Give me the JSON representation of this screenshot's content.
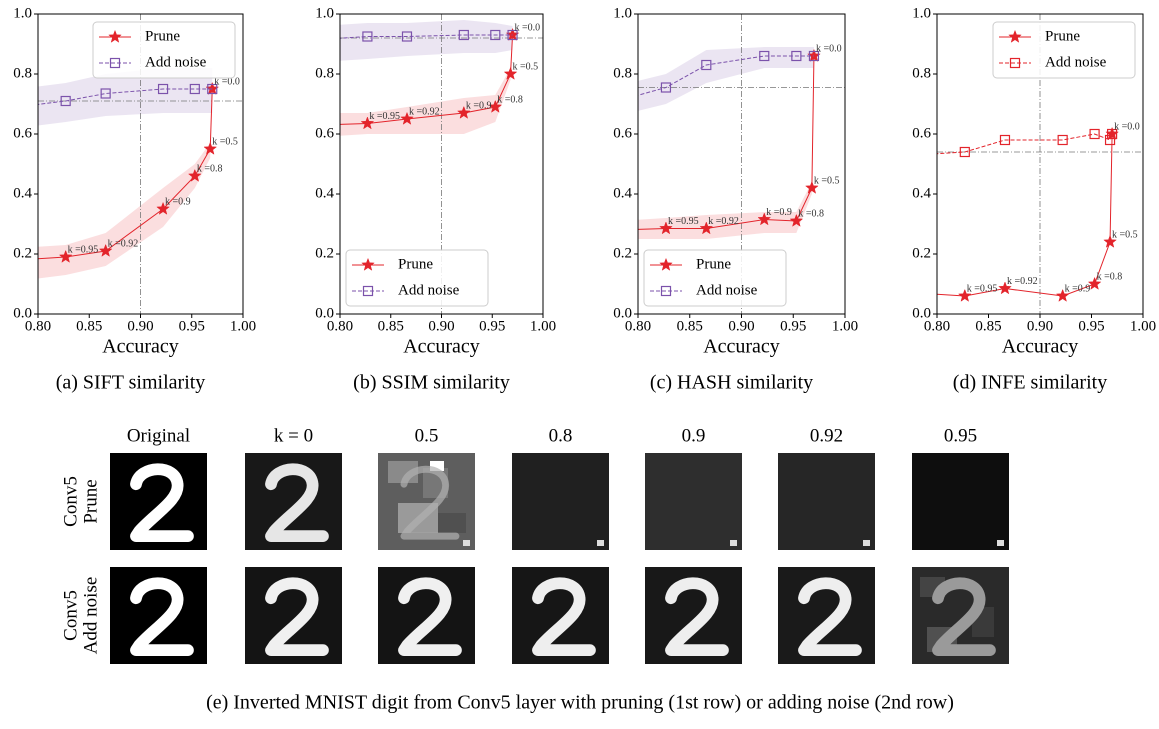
{
  "chart_data": [
    {
      "type": "line",
      "caption": "(a) SIFT similarity",
      "xlabel": "Accuracy",
      "xlim": [
        0.8,
        1.0
      ],
      "ylim": [
        0,
        1
      ],
      "xticks": [
        {
          "value": 0.8,
          "label": "0.80"
        },
        {
          "value": 0.85,
          "label": "0.85"
        },
        {
          "value": 0.9,
          "label": "0.90"
        },
        {
          "value": 0.95,
          "label": "0.95"
        },
        {
          "value": 1.0,
          "label": "1.00"
        }
      ],
      "yticks": [
        {
          "value": 0,
          "label": "0.0"
        },
        0.2,
        0.4,
        0.6,
        0.8,
        {
          "value": 1,
          "label": "1.0"
        }
      ],
      "legend": "upper right",
      "hline": 0.71,
      "vline": 0.9,
      "series": [
        {
          "name": "Prune",
          "color": "#e3242b",
          "marker": "star",
          "linestyle": "solid",
          "x": [
            0.78,
            0.827,
            0.866,
            0.922,
            0.953,
            0.968,
            0.97
          ],
          "values": [
            0.18,
            0.19,
            0.21,
            0.35,
            0.46,
            0.55,
            0.75
          ],
          "lower": [
            0.11,
            0.13,
            0.16,
            0.29,
            0.42,
            0.52,
            0.73
          ],
          "upper": [
            0.22,
            0.23,
            0.27,
            0.42,
            0.5,
            0.57,
            0.77
          ],
          "point_labels": [
            null,
            "k =0.95",
            "k =0.92",
            "k =0.9",
            "k =0.8",
            "k =0.5",
            "k =0.0"
          ]
        },
        {
          "name": "Add noise",
          "color": "#7b52ab",
          "marker": "square",
          "linestyle": "dashed",
          "x": [
            0.78,
            0.827,
            0.866,
            0.922,
            0.953,
            0.97
          ],
          "values": [
            0.69,
            0.71,
            0.735,
            0.75,
            0.75,
            0.75
          ],
          "lower": [
            0.62,
            0.64,
            0.66,
            0.67,
            0.67,
            0.67
          ],
          "upper": [
            0.75,
            0.77,
            0.8,
            0.82,
            0.82,
            0.82
          ]
        }
      ]
    },
    {
      "type": "line",
      "caption": "(b) SSIM similarity",
      "xlabel": "Accuracy",
      "xlim": [
        0.8,
        1.0
      ],
      "ylim": [
        0,
        1
      ],
      "xticks": [
        {
          "value": 0.8,
          "label": "0.80"
        },
        {
          "value": 0.85,
          "label": "0.85"
        },
        {
          "value": 0.9,
          "label": "0.90"
        },
        {
          "value": 0.95,
          "label": "0.95"
        },
        {
          "value": 1.0,
          "label": "1.00"
        }
      ],
      "yticks": [
        {
          "value": 0,
          "label": "0.0"
        },
        0.2,
        0.4,
        0.6,
        0.8,
        {
          "value": 1,
          "label": "1.0"
        }
      ],
      "legend": "lower left",
      "hline": 0.92,
      "vline": 0.9,
      "series": [
        {
          "name": "Prune",
          "color": "#e3242b",
          "marker": "star",
          "linestyle": "solid",
          "x": [
            0.78,
            0.827,
            0.866,
            0.922,
            0.953,
            0.968,
            0.97
          ],
          "values": [
            0.63,
            0.635,
            0.65,
            0.67,
            0.69,
            0.8,
            0.93
          ],
          "lower": [
            0.59,
            0.6,
            0.6,
            0.6,
            0.64,
            0.78,
            0.92
          ],
          "upper": [
            0.67,
            0.67,
            0.69,
            0.72,
            0.73,
            0.82,
            0.94
          ],
          "point_labels": [
            null,
            "k =0.95",
            "k =0.92",
            "k =0.9",
            "k =0.8",
            "k =0.5",
            "k =0.0"
          ]
        },
        {
          "name": "Add noise",
          "color": "#7b52ab",
          "marker": "square",
          "linestyle": "dashed",
          "x": [
            0.78,
            0.827,
            0.866,
            0.922,
            0.953,
            0.97
          ],
          "values": [
            0.915,
            0.925,
            0.925,
            0.93,
            0.93,
            0.93
          ],
          "lower": [
            0.84,
            0.85,
            0.86,
            0.87,
            0.87,
            0.88
          ],
          "upper": [
            0.96,
            0.97,
            0.97,
            0.98,
            0.97,
            0.96
          ]
        }
      ]
    },
    {
      "type": "line",
      "caption": "(c) HASH similarity",
      "xlabel": "Accuracy",
      "xlim": [
        0.8,
        1.0
      ],
      "ylim": [
        0,
        1
      ],
      "xticks": [
        {
          "value": 0.8,
          "label": "0.80"
        },
        {
          "value": 0.85,
          "label": "0.85"
        },
        {
          "value": 0.9,
          "label": "0.90"
        },
        {
          "value": 0.95,
          "label": "0.95"
        },
        {
          "value": 1.0,
          "label": "1.00"
        }
      ],
      "yticks": [
        {
          "value": 0,
          "label": "0.0"
        },
        0.2,
        0.4,
        0.6,
        0.8,
        {
          "value": 1,
          "label": "1.0"
        }
      ],
      "legend": "lower left",
      "hline": 0.755,
      "vline": 0.9,
      "series": [
        {
          "name": "Prune",
          "color": "#e3242b",
          "marker": "star",
          "linestyle": "solid",
          "x": [
            0.78,
            0.827,
            0.866,
            0.922,
            0.953,
            0.968,
            0.97
          ],
          "values": [
            0.28,
            0.285,
            0.285,
            0.315,
            0.31,
            0.42,
            0.86
          ],
          "lower": [
            0.25,
            0.25,
            0.25,
            0.27,
            0.27,
            0.4,
            0.85
          ],
          "upper": [
            0.31,
            0.32,
            0.33,
            0.34,
            0.34,
            0.44,
            0.87
          ],
          "point_labels": [
            null,
            "k =0.95",
            "k =0.92",
            "k =0.9",
            "k =0.8",
            "k =0.5",
            "k =0.0"
          ]
        },
        {
          "name": "Add noise",
          "color": "#7b52ab",
          "marker": "square",
          "linestyle": "dashed",
          "x": [
            0.78,
            0.827,
            0.866,
            0.922,
            0.953,
            0.97
          ],
          "values": [
            0.71,
            0.755,
            0.83,
            0.86,
            0.86,
            0.86
          ],
          "lower": [
            0.66,
            0.7,
            0.77,
            0.82,
            0.82,
            0.82
          ],
          "upper": [
            0.76,
            0.8,
            0.88,
            0.89,
            0.89,
            0.89
          ]
        }
      ]
    },
    {
      "type": "line",
      "caption": "(d) INFE similarity",
      "xlabel": "Accuracy",
      "xlim": [
        0.8,
        1.0
      ],
      "ylim": [
        0,
        1
      ],
      "xticks": [
        {
          "value": 0.8,
          "label": "0.80"
        },
        {
          "value": 0.85,
          "label": "0.85"
        },
        {
          "value": 0.9,
          "label": "0.90"
        },
        {
          "value": 0.95,
          "label": "0.95"
        },
        {
          "value": 1.0,
          "label": "1.00"
        }
      ],
      "yticks": [
        {
          "value": 0,
          "label": "0.0"
        },
        0.2,
        0.4,
        0.6,
        0.8,
        {
          "value": 1,
          "label": "1.0"
        }
      ],
      "legend": "upper right",
      "hline": 0.54,
      "vline": 0.9,
      "series": [
        {
          "name": "Prune",
          "color": "#e3242b",
          "marker": "star",
          "linestyle": "solid",
          "x": [
            0.78,
            0.827,
            0.866,
            0.922,
            0.953,
            0.968,
            0.97
          ],
          "values": [
            0.07,
            0.06,
            0.085,
            0.06,
            0.1,
            0.24,
            0.6
          ],
          "point_labels": [
            null,
            "k =0.95",
            "k =0.92",
            "k =0.9",
            "k =0.8",
            "k =0.5",
            "k =0.0"
          ]
        },
        {
          "name": "Add noise",
          "color": "#e3242b",
          "marker": "square",
          "linestyle": "dashed",
          "x": [
            0.78,
            0.827,
            0.866,
            0.922,
            0.953,
            0.968,
            0.97
          ],
          "values": [
            0.53,
            0.54,
            0.58,
            0.58,
            0.6,
            0.58,
            0.6
          ]
        }
      ]
    }
  ],
  "figure": {
    "column_labels": [
      "Original",
      "k = 0",
      "0.5",
      "0.8",
      "0.9",
      "0.92",
      "0.95"
    ],
    "row_labels": [
      [
        "Conv5",
        "Prune"
      ],
      [
        "Conv5",
        "Add noise"
      ]
    ],
    "caption": "(e) Inverted MNIST digit from Conv5 layer with pruning (1st row) or adding noise (2nd row)"
  }
}
